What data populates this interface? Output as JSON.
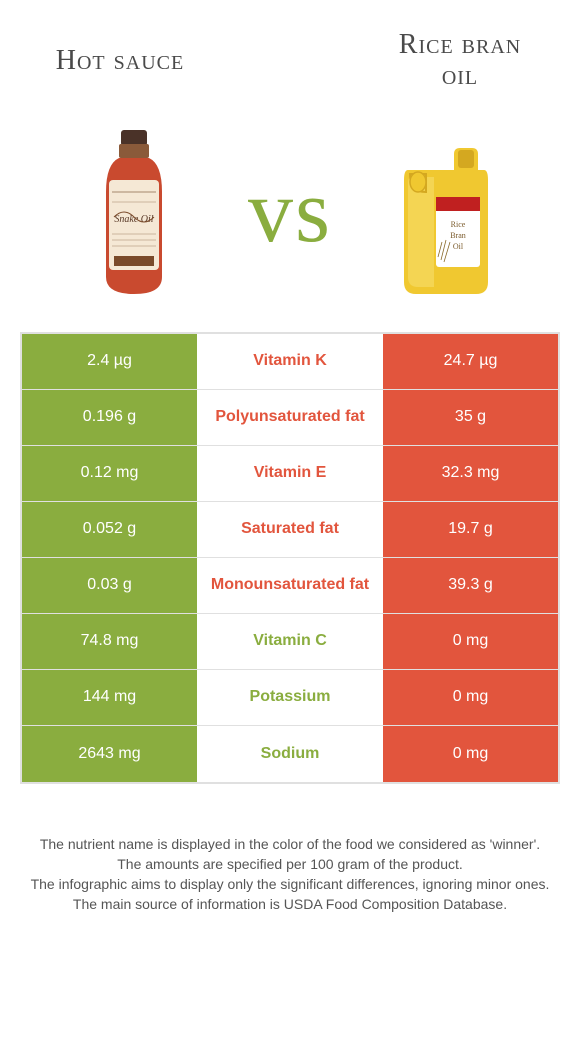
{
  "header": {
    "left_title": "Hot sauce",
    "right_title_line1": "Rice bran",
    "right_title_line2": "oil",
    "vs": "vs"
  },
  "colors": {
    "green": "#8aad3f",
    "orange": "#e2553d",
    "hotsauce_body": "#c94a2f",
    "hotsauce_label": "#f5e8d5",
    "hotsauce_cap": "#4a3228",
    "oil_body": "#f0c830",
    "oil_highlight": "#f7dd6a",
    "oil_cap": "#d4a820",
    "oil_label": "#b8943a"
  },
  "rows": [
    {
      "left": "2.4 µg",
      "label": "Vitamin K",
      "right": "24.7 µg",
      "left_bg": "green",
      "right_bg": "orange",
      "mid": "orange-text"
    },
    {
      "left": "0.196 g",
      "label": "Polyunsaturated fat",
      "right": "35 g",
      "left_bg": "green",
      "right_bg": "orange",
      "mid": "orange-text"
    },
    {
      "left": "0.12 mg",
      "label": "Vitamin E",
      "right": "32.3 mg",
      "left_bg": "green",
      "right_bg": "orange",
      "mid": "orange-text"
    },
    {
      "left": "0.052 g",
      "label": "Saturated fat",
      "right": "19.7 g",
      "left_bg": "green",
      "right_bg": "orange",
      "mid": "orange-text"
    },
    {
      "left": "0.03 g",
      "label": "Monounsaturated fat",
      "right": "39.3 g",
      "left_bg": "green",
      "right_bg": "orange",
      "mid": "orange-text"
    },
    {
      "left": "74.8 mg",
      "label": "Vitamin C",
      "right": "0 mg",
      "left_bg": "green",
      "right_bg": "orange",
      "mid": "green-text"
    },
    {
      "left": "144 mg",
      "label": "Potassium",
      "right": "0 mg",
      "left_bg": "green",
      "right_bg": "orange",
      "mid": "green-text"
    },
    {
      "left": "2643 mg",
      "label": "Sodium",
      "right": "0 mg",
      "left_bg": "green",
      "right_bg": "orange",
      "mid": "green-text"
    }
  ],
  "footer": {
    "line1": "The nutrient name is displayed in the color of the food we considered as 'winner'.",
    "line2": "The amounts are specified per 100 gram of the product.",
    "line3": "The infographic aims to display only the significant differences, ignoring minor ones.",
    "line4": "The main source of information is USDA Food Composition Database."
  },
  "hotsauce_label_text": "Snake Oil",
  "oil_label_text": "Rice\nBran\nOil"
}
